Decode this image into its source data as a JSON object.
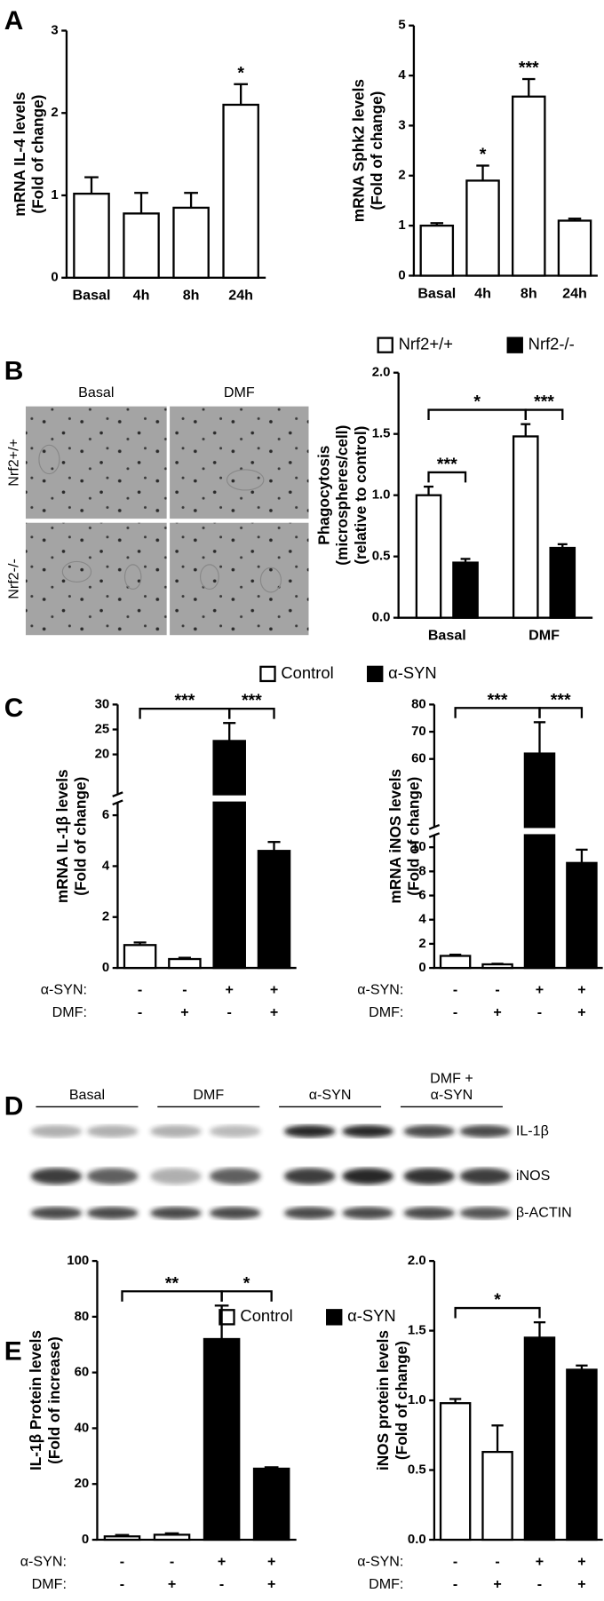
{
  "panel_labels": [
    "A",
    "B",
    "C",
    "D",
    "E"
  ],
  "micrographs": {
    "columns": [
      "Basal",
      "DMF"
    ],
    "rows": [
      "Nrf2+/+",
      "Nrf2-/-"
    ]
  },
  "blot": {
    "lanes": [
      [
        "Basal"
      ],
      [
        "DMF"
      ],
      [
        "α-SYN"
      ],
      [
        "DMF +",
        "α-SYN"
      ]
    ],
    "rows": [
      "IL-1β",
      "iNOS",
      "β-ACTIN"
    ]
  },
  "legends": [
    {
      "entries": [
        {
          "name": "Control",
          "color": "#ffffff"
        },
        {
          "name": "α-SYN",
          "color": "#000000"
        }
      ]
    },
    {
      "entries": [
        {
          "name": "Control",
          "color": "#ffffff"
        },
        {
          "name": "α-SYN",
          "color": "#000000"
        }
      ]
    }
  ],
  "chart_data": [
    {
      "type": "bar",
      "ylabel": [
        "mRNA IL-4 levels",
        "(Fold of change)"
      ],
      "categories": [
        "Basal",
        "4h",
        "8h",
        "24h"
      ],
      "values": [
        1.02,
        0.78,
        0.85,
        2.1
      ],
      "errors": [
        0.2,
        0.25,
        0.18,
        0.25
      ],
      "color": "#ffffff",
      "ylim": [
        0,
        3
      ],
      "yticks": [
        0,
        1,
        2,
        3
      ],
      "annotations": [
        {
          "text": "*",
          "bars": [
            3,
            3
          ]
        }
      ]
    },
    {
      "type": "bar",
      "ylabel": [
        "mRNA Sphk2 levels",
        "(Fold of change)"
      ],
      "categories": [
        "Basal",
        "4h",
        "8h",
        "24h"
      ],
      "values": [
        1.0,
        1.9,
        3.58,
        1.1
      ],
      "errors": [
        0.05,
        0.3,
        0.35,
        0.04
      ],
      "color": "#ffffff",
      "ylim": [
        0,
        5
      ],
      "yticks": [
        0,
        1,
        2,
        3,
        4,
        5
      ],
      "annotations": [
        {
          "text": "*",
          "bars": [
            1,
            1
          ]
        },
        {
          "text": "***",
          "bars": [
            2,
            2
          ]
        }
      ]
    },
    {
      "type": "bar",
      "ylabel": [
        "Phagocytosis",
        "(microspheres/cell)",
        "(relative to control)"
      ],
      "categories": [
        "Basal",
        "DMF"
      ],
      "series": [
        {
          "name": "Nrf2+/+",
          "color": "#ffffff",
          "values": [
            1.0,
            1.48
          ],
          "errors": [
            0.07,
            0.1
          ]
        },
        {
          "name": "Nrf2-/-",
          "color": "#000000",
          "values": [
            0.45,
            0.57
          ],
          "errors": [
            0.03,
            0.03
          ]
        }
      ],
      "ylim": [
        0,
        2
      ],
      "yticks": [
        {
          "value": 0,
          "label": "0.0"
        },
        0.5,
        {
          "value": 1,
          "label": "1.0"
        },
        1.5,
        {
          "value": 2,
          "label": "2.0"
        }
      ],
      "annotations": [
        {
          "text": "*",
          "bars": [
            0,
            2
          ]
        },
        {
          "text": "***",
          "bars": [
            0,
            1
          ]
        },
        {
          "text": "***",
          "bars": [
            2,
            3
          ]
        }
      ]
    },
    {
      "type": "bar",
      "ylabel": [
        "mRNA IL-1β levels",
        "(Fold of change)"
      ],
      "values": [
        0.9,
        0.35,
        22.7,
        4.6
      ],
      "errors": [
        0.1,
        0.05,
        3.6,
        0.35
      ],
      "colors": [
        "#ffffff",
        "#ffffff",
        "#000000",
        "#000000"
      ],
      "ylim": [
        0,
        30
      ],
      "ybreak": [
        6.5,
        12
      ],
      "yticks": [
        0,
        2,
        4,
        6,
        20,
        25,
        30
      ],
      "conditions": [
        {
          "label": "α-SYN:",
          "signs": [
            "-",
            "-",
            "+",
            "+"
          ]
        },
        {
          "label": "DMF:",
          "signs": [
            "-",
            "+",
            "-",
            "+"
          ]
        }
      ],
      "annotations": [
        {
          "text": "***",
          "bars": [
            0,
            2
          ]
        },
        {
          "text": "***",
          "bars": [
            2,
            3
          ]
        }
      ]
    },
    {
      "type": "bar",
      "ylabel": [
        "mRNA iNOS levels",
        "(Fold of change)"
      ],
      "values": [
        1.0,
        0.3,
        62,
        8.7
      ],
      "errors": [
        0.1,
        0.05,
        11.5,
        1.1
      ],
      "colors": [
        "#ffffff",
        "#ffffff",
        "#000000",
        "#000000"
      ],
      "ylim": [
        0,
        80
      ],
      "ybreak": [
        11,
        35
      ],
      "yticks": [
        0,
        2,
        4,
        6,
        8,
        10,
        60,
        70,
        80
      ],
      "conditions": [
        {
          "label": "α-SYN:",
          "signs": [
            "-",
            "-",
            "+",
            "+"
          ]
        },
        {
          "label": "DMF:",
          "signs": [
            "-",
            "+",
            "-",
            "+"
          ]
        }
      ],
      "annotations": [
        {
          "text": "***",
          "bars": [
            0,
            2
          ]
        },
        {
          "text": "***",
          "bars": [
            2,
            3
          ]
        }
      ]
    },
    {
      "type": "bar",
      "ylabel": [
        "IL-1β Protein levels",
        "(Fold of increase)"
      ],
      "values": [
        1.2,
        1.8,
        72,
        25.5
      ],
      "errors": [
        0.5,
        0.5,
        12,
        0.5
      ],
      "colors": [
        "#ffffff",
        "#ffffff",
        "#000000",
        "#000000"
      ],
      "ylim": [
        0,
        100
      ],
      "yticks": [
        0,
        20,
        40,
        60,
        80,
        100
      ],
      "conditions": [
        {
          "label": "α-SYN:",
          "signs": [
            "-",
            "-",
            "+",
            "+"
          ]
        },
        {
          "label": "DMF:",
          "signs": [
            "-",
            "+",
            "-",
            "+"
          ]
        }
      ],
      "annotations": [
        {
          "text": "**",
          "bars": [
            0,
            2
          ]
        },
        {
          "text": "*",
          "bars": [
            2,
            3
          ]
        }
      ]
    },
    {
      "type": "bar",
      "ylabel": [
        "iNOS protein levels",
        "(Fold of change)"
      ],
      "values": [
        0.98,
        0.63,
        1.45,
        1.22
      ],
      "errors": [
        0.03,
        0.19,
        0.11,
        0.03
      ],
      "colors": [
        "#ffffff",
        "#ffffff",
        "#000000",
        "#000000"
      ],
      "ylim": [
        0,
        2
      ],
      "yticks": [
        {
          "value": 0,
          "label": "0.0"
        },
        0.5,
        {
          "value": 1,
          "label": "1.0"
        },
        1.5,
        {
          "value": 2,
          "label": "2.0"
        }
      ],
      "conditions": [
        {
          "label": "α-SYN:",
          "signs": [
            "-",
            "-",
            "+",
            "+"
          ]
        },
        {
          "label": "DMF:",
          "signs": [
            "-",
            "+",
            "-",
            "+"
          ]
        }
      ],
      "annotations": [
        {
          "text": "*",
          "bars": [
            0,
            2
          ]
        }
      ]
    }
  ]
}
